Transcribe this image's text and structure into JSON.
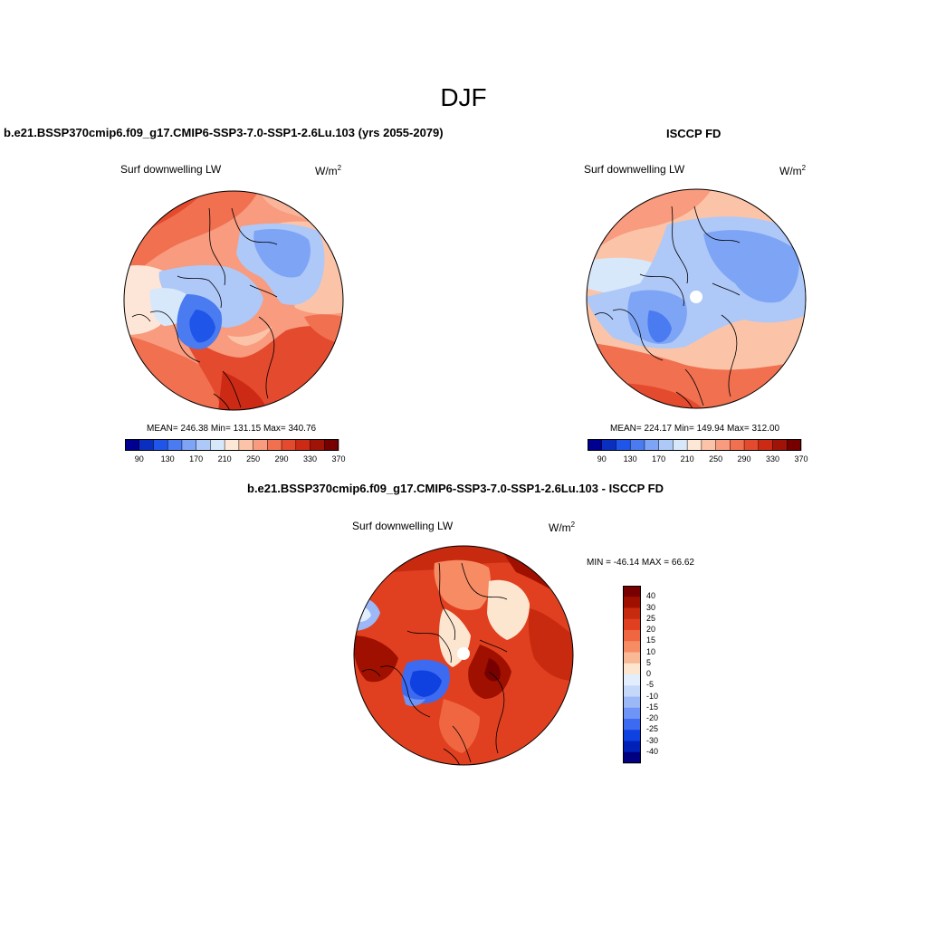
{
  "figure": {
    "title": "DJF"
  },
  "colors": {
    "abs_palette": [
      "#000090",
      "#0a2fc0",
      "#1f55e8",
      "#4a7bf0",
      "#7ea4f5",
      "#aec8f8",
      "#d8e8fb",
      "#fde8d8",
      "#fbc4a8",
      "#f89b7e",
      "#f07050",
      "#e44a2e",
      "#cc2a14",
      "#a01408",
      "#760000"
    ],
    "diff_palette": [
      "#000080",
      "#0020b8",
      "#0f40e0",
      "#3c6af0",
      "#6e94f5",
      "#9cb8f7",
      "#c6d8fa",
      "#e2eefd",
      "#fde6d0",
      "#f9b896",
      "#f78c64",
      "#ef6640",
      "#e04020",
      "#c82a10",
      "#a01000",
      "#780000"
    ],
    "coast": "#000000"
  },
  "panels": {
    "model": {
      "title": "b.e21.BSSP370cmip6.f09_g17.CMIP6-SSP3-7.0-SSP1-2.6Lu.103 (yrs 2055-2079)",
      "subtitle": "Surf downwelling LW",
      "units": "W/m",
      "units_sup": "2",
      "stats": "MEAN= 246.38  Min= 131.15  Max= 340.76",
      "colorbar_ticks": [
        "90",
        "130",
        "170",
        "210",
        "250",
        "290",
        "330",
        "370"
      ]
    },
    "obs": {
      "title": "ISCCP FD",
      "subtitle": "Surf downwelling LW",
      "units": "W/m",
      "units_sup": "2",
      "stats": "MEAN= 224.17  Min= 149.94  Max= 312.00",
      "colorbar_ticks": [
        "90",
        "130",
        "170",
        "210",
        "250",
        "290",
        "330",
        "370"
      ]
    },
    "diff": {
      "title": "b.e21.BSSP370cmip6.f09_g17.CMIP6-SSP3-7.0-SSP1-2.6Lu.103 - ISCCP FD",
      "subtitle": "Surf downwelling LW",
      "units": "W/m",
      "units_sup": "2",
      "stats": "MIN = -46.14 MAX =  66.62",
      "colorbar_ticks": [
        "40",
        "30",
        "25",
        "20",
        "15",
        "10",
        "5",
        "0",
        "-5",
        "-10",
        "-15",
        "-20",
        "-25",
        "-30",
        "-40"
      ]
    }
  }
}
